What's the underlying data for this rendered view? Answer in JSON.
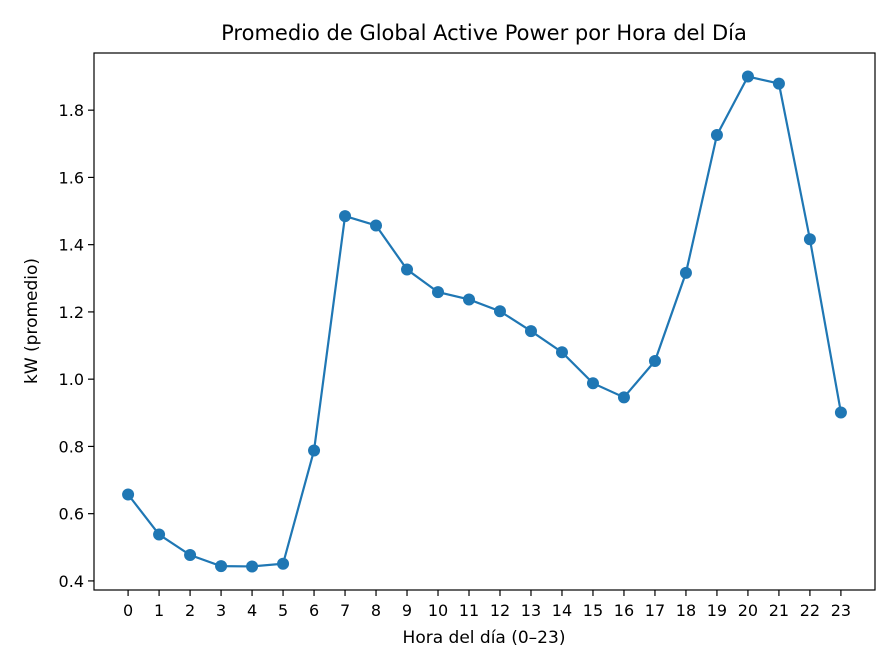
{
  "chart_data": {
    "type": "line",
    "title": "Promedio de Global Active Power por Hora del Día",
    "xlabel": "Hora del día (0–23)",
    "ylabel": "kW (promedio)",
    "x": [
      0,
      1,
      2,
      3,
      4,
      5,
      6,
      7,
      8,
      9,
      10,
      11,
      12,
      13,
      14,
      15,
      16,
      17,
      18,
      19,
      20,
      21,
      22,
      23
    ],
    "xticks": [
      "0",
      "1",
      "2",
      "3",
      "4",
      "5",
      "6",
      "7",
      "8",
      "9",
      "10",
      "11",
      "12",
      "13",
      "14",
      "15",
      "16",
      "17",
      "18",
      "19",
      "20",
      "21",
      "22",
      "23"
    ],
    "series": [
      {
        "values": [
          0.657,
          0.538,
          0.477,
          0.444,
          0.443,
          0.451,
          0.788,
          1.485,
          1.457,
          1.326,
          1.259,
          1.237,
          1.202,
          1.143,
          1.08,
          0.988,
          0.946,
          1.054,
          1.316,
          1.726,
          1.9,
          1.879,
          1.416,
          0.901
        ],
        "color": "#1f77b4"
      }
    ],
    "xlim": [
      -1.1,
      24.1
    ],
    "ylim": [
      0.373,
      1.97
    ],
    "yticks": [
      0.4,
      0.6,
      0.8,
      1.0,
      1.2,
      1.4,
      1.6,
      1.8
    ],
    "ytick_labels": [
      "0.4",
      "0.6",
      "0.8",
      "1.0",
      "1.2",
      "1.4",
      "1.6",
      "1.8"
    ],
    "grid": false,
    "legend": "none"
  }
}
